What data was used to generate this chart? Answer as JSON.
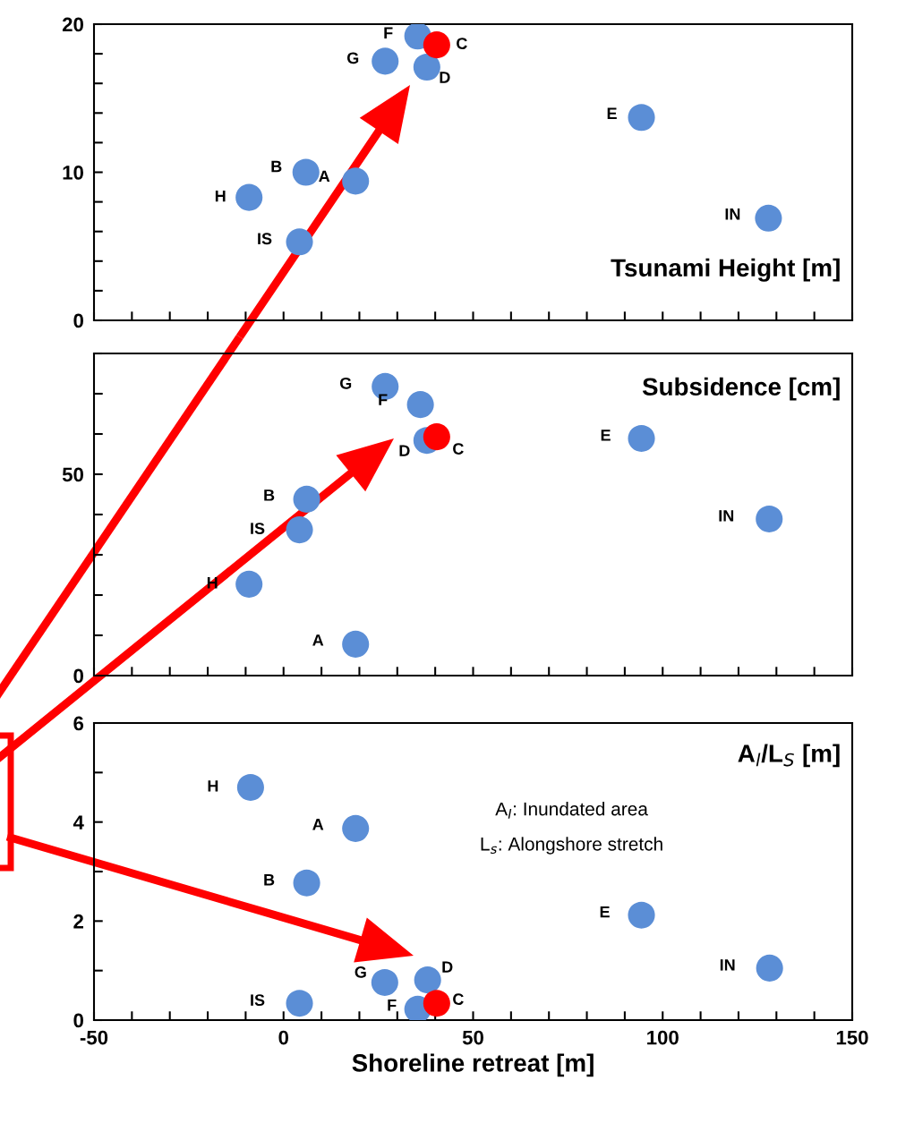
{
  "chart_data": [
    {
      "type": "scatter",
      "title": "Tsunami Height [m]",
      "marker": "circle",
      "tick_labels": "y",
      "xlim": [
        -50,
        150
      ],
      "xticks": [
        -50,
        -40,
        -30,
        -20,
        -10,
        0,
        10,
        20,
        30,
        40,
        50,
        60,
        70,
        80,
        90,
        100,
        110,
        120,
        130,
        140,
        150
      ],
      "ylim": [
        0,
        20
      ],
      "yticks": [
        0,
        {
          "value": 2,
          "label": null
        },
        {
          "value": 4,
          "label": null
        },
        {
          "value": 6,
          "label": null
        },
        {
          "value": 8,
          "label": null
        },
        10,
        {
          "value": 12,
          "label": null
        },
        {
          "value": 14,
          "label": null
        },
        {
          "value": 16,
          "label": null
        },
        {
          "value": 18,
          "label": null
        },
        20
      ],
      "series": [
        {
          "color": "#5b8ed6",
          "x": [
            35.4,
            26.8,
            37.8,
            94.4,
            5.9,
            19.0,
            -9.1,
            127.9,
            4.2
          ],
          "values": [
            19.2,
            17.5,
            17.1,
            13.7,
            10.0,
            9.4,
            8.3,
            6.9,
            5.3
          ]
        },
        {
          "color": "#ff0000",
          "x": [
            40.4
          ],
          "values": [
            18.6
          ]
        }
      ],
      "annotations": [
        {
          "text": "F",
          "x": 35.4,
          "y": 19.2
        },
        {
          "text": "C",
          "x": 40.4,
          "y": 18.6
        },
        {
          "text": "G",
          "x": 26.8,
          "y": 17.5
        },
        {
          "text": "D",
          "x": 37.8,
          "y": 17.1
        },
        {
          "text": "E",
          "x": 94.4,
          "y": 13.7
        },
        {
          "text": "B",
          "x": 5.9,
          "y": 10.0
        },
        {
          "text": "A",
          "x": 19.0,
          "y": 9.4
        },
        {
          "text": "H",
          "x": -9.1,
          "y": 8.3
        },
        {
          "text": "IN",
          "x": 127.9,
          "y": 6.9
        },
        {
          "text": "IS",
          "x": 4.2,
          "y": 5.3
        }
      ]
    },
    {
      "type": "scatter",
      "title": "Subsidence [cm]",
      "marker": "circle",
      "tick_labels": "y",
      "xlim": [
        -50,
        150
      ],
      "xticks": [
        -50,
        -40,
        -30,
        -20,
        -10,
        0,
        10,
        20,
        30,
        40,
        50,
        60,
        70,
        80,
        90,
        100,
        110,
        120,
        130,
        140,
        150
      ],
      "ylim": [
        0,
        80
      ],
      "yticks": [
        0,
        {
          "value": 10,
          "label": null
        },
        {
          "value": 20,
          "label": null
        },
        {
          "value": 30,
          "label": null
        },
        {
          "value": 40,
          "label": null
        },
        50,
        {
          "value": 60,
          "label": null
        },
        {
          "value": 70,
          "label": null
        },
        {
          "value": 80,
          "label": null
        }
      ],
      "series": [
        {
          "color": "#5b8ed6",
          "x": [
            26.8,
            36.1,
            37.8,
            94.4,
            6.1,
            128.1,
            4.2,
            -9.1,
            19.0
          ],
          "values": [
            71.8,
            67.3,
            58.4,
            58.9,
            43.8,
            38.9,
            36.2,
            22.7,
            7.8
          ]
        },
        {
          "color": "#ff0000",
          "x": [
            40.4
          ],
          "values": [
            59.3
          ]
        }
      ],
      "annotations": [
        {
          "text": "G",
          "x": 26.8,
          "y": 71.8
        },
        {
          "text": "F",
          "x": 36.1,
          "y": 67.3
        },
        {
          "text": "C",
          "x": 40.4,
          "y": 59.3
        },
        {
          "text": "D",
          "x": 37.8,
          "y": 58.4
        },
        {
          "text": "E",
          "x": 94.4,
          "y": 58.9
        },
        {
          "text": "B",
          "x": 6.1,
          "y": 43.8
        },
        {
          "text": "IN",
          "x": 128.1,
          "y": 38.9
        },
        {
          "text": "IS",
          "x": 4.2,
          "y": 36.2
        },
        {
          "text": "H",
          "x": -9.1,
          "y": 22.7
        },
        {
          "text": "A",
          "x": 19.0,
          "y": 7.8
        }
      ]
    },
    {
      "type": "scatter",
      "title": "A$_{l}$/L$_{S}$ [m]",
      "xlabel": "Shoreline retreat [m]",
      "marker": "circle",
      "xlim": [
        -50,
        150
      ],
      "xticks": [
        -50,
        {
          "value": -40,
          "label": null
        },
        {
          "value": -30,
          "label": null
        },
        {
          "value": -20,
          "label": null
        },
        {
          "value": -10,
          "label": null
        },
        0,
        {
          "value": 10,
          "label": null
        },
        {
          "value": 20,
          "label": null
        },
        {
          "value": 30,
          "label": null
        },
        {
          "value": 40,
          "label": null
        },
        50,
        {
          "value": 60,
          "label": null
        },
        {
          "value": 70,
          "label": null
        },
        {
          "value": 80,
          "label": null
        },
        {
          "value": 90,
          "label": null
        },
        100,
        {
          "value": 110,
          "label": null
        },
        {
          "value": 120,
          "label": null
        },
        {
          "value": 130,
          "label": null
        },
        {
          "value": 140,
          "label": null
        },
        150
      ],
      "ylim": [
        0,
        6
      ],
      "yticks": [
        0,
        {
          "value": 1,
          "label": null
        },
        2,
        {
          "value": 3,
          "label": null
        },
        4,
        {
          "value": 5,
          "label": null
        },
        6
      ],
      "series": [
        {
          "color": "#5b8ed6",
          "x": [
            -8.7,
            19.0,
            6.1,
            94.4,
            128.2,
            38.0,
            26.7,
            4.2,
            35.4
          ],
          "values": [
            4.7,
            3.87,
            2.77,
            2.12,
            1.05,
            0.81,
            0.76,
            0.34,
            0.22
          ]
        },
        {
          "color": "#ff0000",
          "x": [
            40.4
          ],
          "values": [
            0.34
          ]
        }
      ],
      "annotations": [
        {
          "text": "H",
          "x": -8.7,
          "y": 4.7
        },
        {
          "text": "A",
          "x": 19.0,
          "y": 3.87
        },
        {
          "text": "B",
          "x": 6.1,
          "y": 2.77
        },
        {
          "text": "E",
          "x": 94.4,
          "y": 2.12
        },
        {
          "text": "IN",
          "x": 128.2,
          "y": 1.05
        },
        {
          "text": "D",
          "x": 38.0,
          "y": 0.81
        },
        {
          "text": "G",
          "x": 26.7,
          "y": 0.76
        },
        {
          "text": "IS",
          "x": 4.2,
          "y": 0.34
        },
        {
          "text": "C",
          "x": 40.4,
          "y": 0.34
        },
        {
          "text": "F",
          "x": 35.4,
          "y": 0.22
        },
        "A$_{I}$: Inundated area",
        "L$_{s}$: Alongshore stretch"
      ]
    }
  ]
}
